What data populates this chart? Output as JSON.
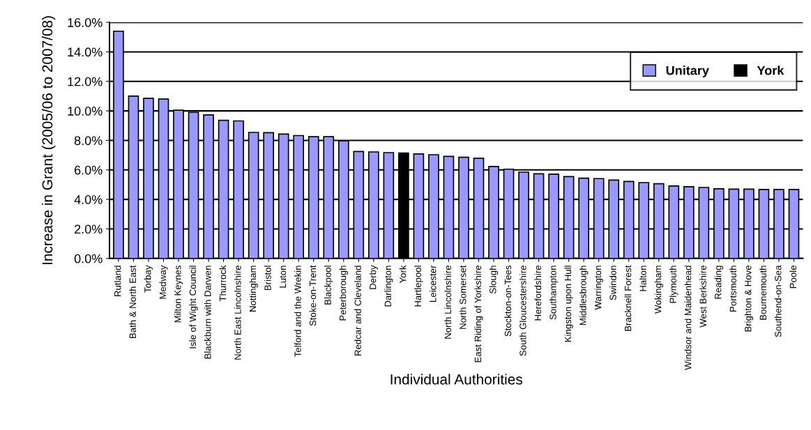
{
  "chart_data": {
    "type": "bar",
    "xlabel": "Individual Authorities",
    "ylabel": "Increase in Grant (2005/06 to 2007/08)",
    "categories": [
      "Rutland",
      "Bath & North East",
      "Torbay",
      "Medway",
      "Milton Keynes",
      "Isle of Wight Council",
      "Blackburn with Darwen",
      "Thurrock",
      "North East Lincolnshire",
      "Nottingham",
      "Bristol",
      "Luton",
      "Telford and the Wrekin",
      "Stoke-on-Trent",
      "Blackpool",
      "Peterborough",
      "Redcar and Cleveland",
      "Derby",
      "Darlington",
      "York",
      "Hartlepool",
      "Leicester",
      "North Lincolnshire",
      "North Somerset",
      "East Riding of Yorkshire",
      "Slough",
      "Stockton-on-Tees",
      "South Gloucestershire",
      "Herefordshire",
      "Southampton",
      "Kingston upon Hull",
      "Middlesbrough",
      "Warrington",
      "Swindon",
      "Bracknell Forest",
      "Halton",
      "Wokingham",
      "Plymouth",
      "Windsor and Maidenhead",
      "West Berkshire",
      "Reading",
      "Portsmouth",
      "Brighton & Hove",
      "Bournemouth",
      "Southend-on-Sea",
      "Poole"
    ],
    "series": [
      {
        "name": "Unitary",
        "color": "#9999ff",
        "values": [
          15.4,
          11.0,
          10.85,
          10.8,
          10.05,
          9.9,
          9.73,
          9.36,
          9.32,
          8.54,
          8.52,
          8.43,
          8.33,
          8.25,
          8.25,
          7.97,
          7.25,
          7.22,
          7.17,
          null,
          7.08,
          7.03,
          6.92,
          6.86,
          6.79,
          6.23,
          6.05,
          5.85,
          5.74,
          5.71,
          5.55,
          5.44,
          5.41,
          5.31,
          5.22,
          5.14,
          5.06,
          4.91,
          4.86,
          4.81,
          4.72,
          4.7,
          4.7,
          4.67,
          4.67,
          4.67
        ]
      },
      {
        "name": "York",
        "color": "#000000",
        "values": [
          null,
          null,
          null,
          null,
          null,
          null,
          null,
          null,
          null,
          null,
          null,
          null,
          null,
          null,
          null,
          null,
          null,
          null,
          null,
          7.14,
          null,
          null,
          null,
          null,
          null,
          null,
          null,
          null,
          null,
          null,
          null,
          null,
          null,
          null,
          null,
          null,
          null,
          null,
          null,
          null,
          null,
          null,
          null,
          null,
          null,
          null
        ]
      }
    ],
    "ylim": [
      0,
      16
    ],
    "yticks": [
      {
        "value": 0,
        "label": "0.0%"
      },
      {
        "value": 2,
        "label": "2.0%"
      },
      {
        "value": 4,
        "label": "4.0%"
      },
      {
        "value": 6,
        "label": "6.0%"
      },
      {
        "value": 8,
        "label": "8.0%"
      },
      {
        "value": 10,
        "label": "10.0%"
      },
      {
        "value": 12,
        "label": "12.0%"
      },
      {
        "value": 14,
        "label": "14.0%"
      },
      {
        "value": 16,
        "label": "16.0%"
      }
    ],
    "grid": "y",
    "legend": "top right"
  }
}
